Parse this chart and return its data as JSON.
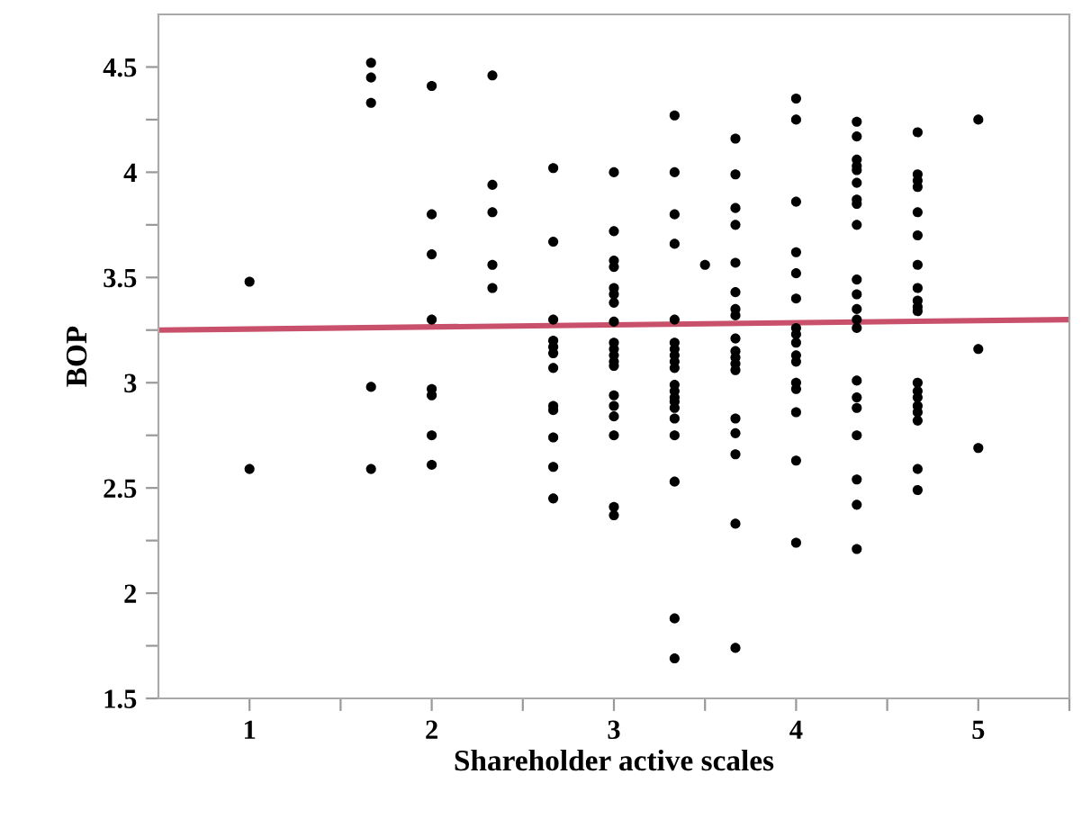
{
  "chart_data": {
    "type": "scatter",
    "xlabel": "Shareholder active scales",
    "ylabel": "BOP",
    "xlim": [
      0.5,
      5.5
    ],
    "ylim": [
      1.5,
      4.75
    ],
    "xticks": [
      1,
      {
        "value": 1.5,
        "label": null
      },
      2,
      {
        "value": 2.5,
        "label": null
      },
      3,
      {
        "value": 3.5,
        "label": null
      },
      4,
      {
        "value": 4.5,
        "label": null
      },
      5,
      {
        "value": 5.5,
        "label": null
      }
    ],
    "yticks": [
      1.5,
      {
        "value": 1.75,
        "label": null
      },
      2,
      {
        "value": 2.25,
        "label": null
      },
      2.5,
      {
        "value": 2.75,
        "label": null
      },
      3,
      {
        "value": 3.25,
        "label": null
      },
      3.5,
      {
        "value": 3.75,
        "label": null
      },
      4,
      {
        "value": 4.25,
        "label": null
      },
      4.5
    ],
    "grid": false,
    "legend": false,
    "series": [
      {
        "marker": "circle",
        "color": "#000000",
        "x": [
          1,
          1,
          1.667,
          1.667,
          1.667,
          1.667,
          1.667,
          2,
          2,
          2,
          2,
          2,
          2,
          2,
          2,
          2.333,
          2.333,
          2.333,
          2.333,
          2.333,
          2.667,
          2.667,
          2.667,
          2.667,
          2.667,
          2.667,
          2.667,
          2.667,
          2.667,
          2.667,
          2.667,
          2.667,
          3,
          3,
          3,
          3,
          3,
          3,
          3,
          3,
          3,
          3,
          3,
          3,
          3,
          3,
          3,
          3,
          3,
          3,
          3,
          3.333,
          3.333,
          3.333,
          3.333,
          3.333,
          3.333,
          3.333,
          3.333,
          3.333,
          3.333,
          3.333,
          3.333,
          3.333,
          3.333,
          3.333,
          3.333,
          3.333,
          3.333,
          3.333,
          3.333,
          3.5,
          3.667,
          3.667,
          3.667,
          3.667,
          3.667,
          3.667,
          3.667,
          3.667,
          3.667,
          3.667,
          3.667,
          3.667,
          3.667,
          3.667,
          3.667,
          3.667,
          3.667,
          3.667,
          4,
          4,
          4,
          4,
          4,
          4,
          4,
          4,
          4,
          4,
          4,
          4,
          4,
          4,
          4,
          4,
          4.333,
          4.333,
          4.333,
          4.333,
          4.333,
          4.333,
          4.333,
          4.333,
          4.333,
          4.333,
          4.333,
          4.333,
          4.333,
          4.333,
          4.333,
          4.333,
          4.333,
          4.333,
          4.333,
          4.333,
          4.333,
          4.667,
          4.667,
          4.667,
          4.667,
          4.667,
          4.667,
          4.667,
          4.667,
          4.667,
          4.667,
          4.667,
          4.667,
          4.667,
          4.667,
          4.667,
          4.667,
          4.667,
          4.667,
          4.667,
          5,
          5,
          5
        ],
        "values": [
          3.48,
          2.59,
          4.52,
          4.45,
          4.33,
          2.98,
          2.59,
          4.41,
          3.8,
          3.61,
          3.3,
          2.97,
          2.94,
          2.75,
          2.61,
          4.46,
          3.94,
          3.81,
          3.56,
          3.45,
          4.02,
          3.67,
          3.3,
          3.2,
          3.17,
          3.14,
          3.07,
          2.89,
          2.87,
          2.74,
          2.6,
          2.45,
          4.0,
          3.72,
          3.58,
          3.55,
          3.45,
          3.42,
          3.38,
          3.29,
          3.19,
          3.16,
          3.13,
          3.1,
          3.08,
          2.94,
          2.89,
          2.84,
          2.75,
          2.41,
          2.37,
          4.27,
          4.0,
          3.8,
          3.66,
          3.3,
          3.19,
          3.16,
          3.13,
          3.1,
          3.07,
          2.99,
          2.96,
          2.93,
          2.91,
          2.88,
          2.83,
          2.75,
          2.53,
          1.88,
          1.69,
          3.56,
          4.16,
          3.99,
          3.83,
          3.75,
          3.57,
          3.43,
          3.35,
          3.32,
          3.21,
          3.15,
          3.12,
          3.09,
          3.06,
          2.83,
          2.76,
          2.66,
          2.33,
          1.74,
          4.35,
          4.25,
          3.86,
          3.62,
          3.52,
          3.4,
          3.26,
          3.23,
          3.19,
          3.13,
          3.1,
          3.0,
          2.97,
          2.86,
          2.63,
          2.24,
          4.24,
          4.17,
          4.06,
          4.03,
          4.01,
          3.95,
          3.87,
          3.85,
          3.75,
          3.49,
          3.42,
          3.35,
          3.3,
          3.26,
          3.01,
          2.93,
          2.88,
          2.75,
          2.54,
          2.42,
          2.21,
          4.19,
          3.99,
          3.96,
          3.93,
          3.81,
          3.7,
          3.56,
          3.45,
          3.39,
          3.36,
          3.34,
          3.0,
          2.96,
          2.93,
          2.89,
          2.86,
          2.82,
          2.59,
          2.49,
          4.25,
          3.16,
          2.69
        ]
      },
      {
        "type": "line",
        "color": "#c8506a",
        "x": [
          0.5,
          5.5
        ],
        "values": [
          3.25,
          3.3
        ]
      }
    ]
  }
}
